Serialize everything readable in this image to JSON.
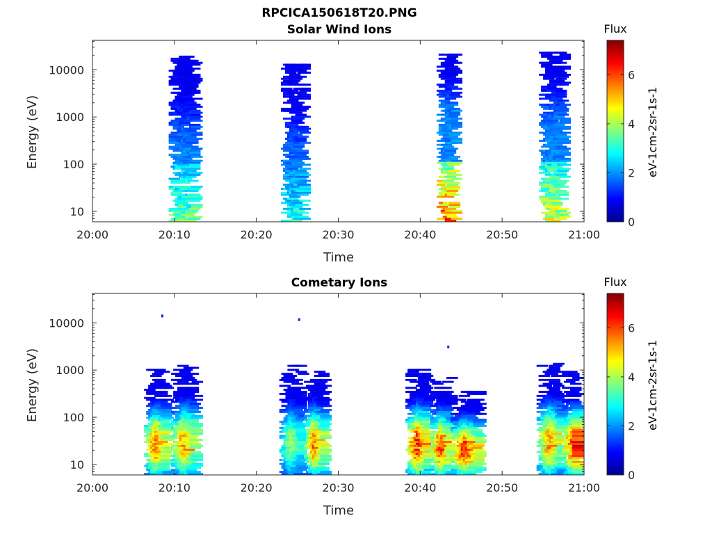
{
  "figure": {
    "filename_title": "RPCICA150618T20.PNG"
  },
  "chart_data": [
    {
      "type": "heatmap",
      "title": "Solar Wind Ions",
      "xlabel": "Time",
      "ylabel": "Energy (eV)",
      "x_ticks": [
        "20:00",
        "20:10",
        "20:20",
        "20:30",
        "20:40",
        "20:50",
        "21:00"
      ],
      "xlim_minutes": [
        0,
        60
      ],
      "y_scale": "log",
      "y_ticks": [
        "10",
        "100",
        "1000",
        "10000"
      ],
      "ylim": [
        6,
        42000
      ],
      "colorbar": {
        "title": "Flux",
        "label": "eV-1cm-2sr-1s-1",
        "ticks": [
          "0",
          "2",
          "4",
          "6"
        ],
        "range": [
          0,
          7.4
        ],
        "colormap": "jet"
      },
      "clusters": [
        {
          "t_min": 9.3,
          "t_max": 12.1,
          "e_min": 6,
          "e_max": 18000,
          "peak_flux": 4.2,
          "note": "high-energy blue, low-energy green"
        },
        {
          "t_min": 23.0,
          "t_max": 25.3,
          "e_min": 6,
          "e_max": 13000,
          "peak_flux": 3.5
        },
        {
          "t_min": 42.0,
          "t_max": 44.0,
          "e_min": 6,
          "e_max": 20000,
          "peak_flux": 6.8
        },
        {
          "t_min": 54.5,
          "t_max": 57.2,
          "e_min": 6,
          "e_max": 24000,
          "peak_flux": 5.2
        }
      ]
    },
    {
      "type": "heatmap",
      "title": "Cometary Ions",
      "xlabel": "Time",
      "ylabel": "Energy (eV)",
      "x_ticks": [
        "20:00",
        "20:10",
        "20:20",
        "20:30",
        "20:40",
        "20:50",
        "21:00"
      ],
      "xlim_minutes": [
        0,
        60
      ],
      "y_scale": "log",
      "y_ticks": [
        "10",
        "100",
        "1000",
        "10000"
      ],
      "ylim": [
        6,
        42000
      ],
      "colorbar": {
        "title": "Flux",
        "label": "eV-1cm-2sr-1s-1",
        "ticks": [
          "0",
          "2",
          "4",
          "6"
        ],
        "range": [
          0,
          7.4
        ],
        "colormap": "jet"
      },
      "clusters": [
        {
          "t_min": 6.3,
          "t_max": 8.8,
          "e_min": 6,
          "e_max": 1000,
          "peak_flux": 6.5
        },
        {
          "t_min": 9.6,
          "t_max": 12.3,
          "e_min": 6,
          "e_max": 1200,
          "peak_flux": 6.2
        },
        {
          "t_min": 22.8,
          "t_max": 25.2,
          "e_min": 6,
          "e_max": 1300,
          "peak_flux": 4.6
        },
        {
          "t_min": 25.8,
          "t_max": 27.9,
          "e_min": 6,
          "e_max": 1000,
          "peak_flux": 6.4
        },
        {
          "t_min": 38.2,
          "t_max": 40.6,
          "e_min": 6,
          "e_max": 1000,
          "peak_flux": 7.2
        },
        {
          "t_min": 41.2,
          "t_max": 43.3,
          "e_min": 6,
          "e_max": 700,
          "peak_flux": 7.0
        },
        {
          "t_min": 43.7,
          "t_max": 46.8,
          "e_min": 6,
          "e_max": 400,
          "peak_flux": 7.3
        },
        {
          "t_min": 54.2,
          "t_max": 56.8,
          "e_min": 6,
          "e_max": 1400,
          "peak_flux": 6.2
        },
        {
          "t_min": 57.3,
          "t_max": 59.8,
          "e_min": 6,
          "e_max": 900,
          "peak_flux": 7.2
        }
      ],
      "isolated_points": [
        {
          "t": 8.4,
          "e": 15000
        },
        {
          "t": 25.1,
          "e": 12500
        },
        {
          "t": 43.3,
          "e": 3300
        }
      ]
    }
  ]
}
